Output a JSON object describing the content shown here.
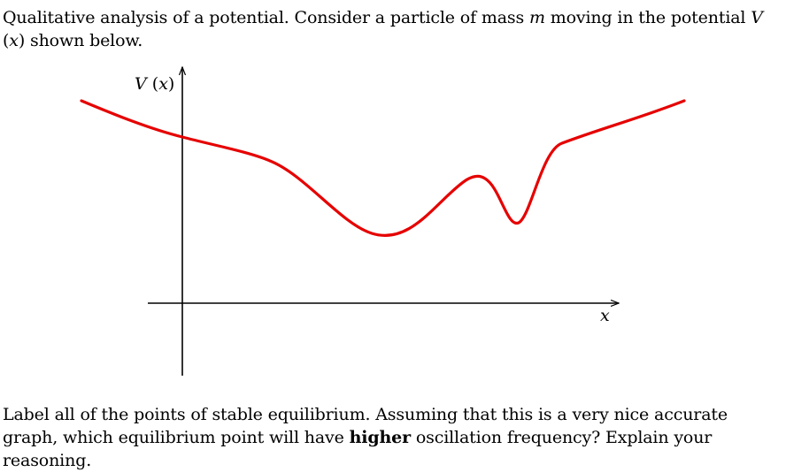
{
  "intro": {
    "lead": "Qualitative analysis of a potential.",
    "text_1": " Consider a particle of mass ",
    "mass_symbol": "m",
    "text_2": " moving in the potential ",
    "potential_symbol": "V",
    "arg_open": " (",
    "arg_var": "x",
    "arg_close": ")",
    "text_3": " shown below."
  },
  "question": {
    "text_1": "Label all of the points of stable equilibrium. Assuming that this is a very nice accurate graph, which equilibrium point will have ",
    "emphasis": "higher",
    "text_2": " oscillation frequency? Explain your reasoning."
  },
  "figure": {
    "y_axis_label": "V (x)",
    "x_axis_label": "x",
    "curve_color": "#e60000",
    "axis_color": "#000000"
  }
}
